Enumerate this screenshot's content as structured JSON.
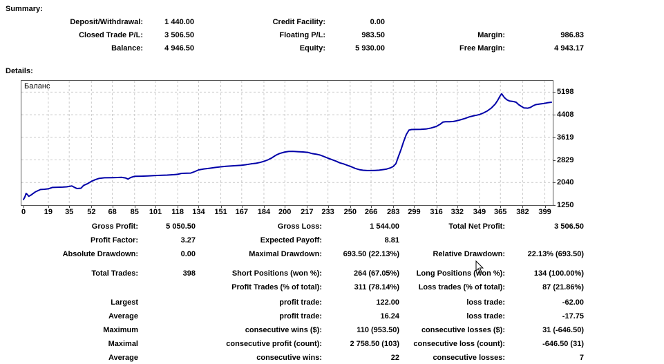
{
  "summary": {
    "heading": "Summary:",
    "rows": [
      {
        "c1l": "Deposit/Withdrawal:",
        "c1v": "1 440.00",
        "c2l": "Credit Facility:",
        "c2v": "0.00",
        "c3l": "",
        "c3v": ""
      },
      {
        "c1l": "Closed Trade P/L:",
        "c1v": "3 506.50",
        "c2l": "Floating P/L:",
        "c2v": "983.50",
        "c3l": "Margin:",
        "c3v": "986.83"
      },
      {
        "c1l": "Balance:",
        "c1v": "4 946.50",
        "c2l": "Equity:",
        "c2v": "5 930.00",
        "c3l": "Free Margin:",
        "c3v": "4 943.17"
      }
    ]
  },
  "details_heading": "Details:",
  "chart_data": {
    "type": "line",
    "title": "Баланс",
    "legend_position": "top-left-inside",
    "grid": "dashed",
    "xlim": [
      0,
      404
    ],
    "ylim": [
      1250,
      5593
    ],
    "x_ticks": [
      0,
      19,
      35,
      52,
      68,
      85,
      101,
      118,
      134,
      151,
      167,
      184,
      200,
      217,
      233,
      250,
      266,
      283,
      299,
      316,
      332,
      349,
      365,
      382,
      399
    ],
    "y_ticks": [
      5198,
      4408,
      3619,
      2829,
      2040,
      1250
    ],
    "series": [
      {
        "name": "Баланс",
        "color": "#0000a8",
        "points": [
          [
            0,
            1450
          ],
          [
            1,
            1530
          ],
          [
            2,
            1660
          ],
          [
            3,
            1620
          ],
          [
            4,
            1560
          ],
          [
            6,
            1610
          ],
          [
            9,
            1710
          ],
          [
            13,
            1795
          ],
          [
            16,
            1805
          ],
          [
            19,
            1820
          ],
          [
            22,
            1868
          ],
          [
            26,
            1875
          ],
          [
            30,
            1880
          ],
          [
            33,
            1890
          ],
          [
            35,
            1905
          ],
          [
            37,
            1920
          ],
          [
            39,
            1870
          ],
          [
            41,
            1830
          ],
          [
            44,
            1840
          ],
          [
            46,
            1940
          ],
          [
            49,
            2000
          ],
          [
            52,
            2080
          ],
          [
            55,
            2140
          ],
          [
            58,
            2185
          ],
          [
            62,
            2205
          ],
          [
            68,
            2210
          ],
          [
            72,
            2215
          ],
          [
            75,
            2220
          ],
          [
            78,
            2200
          ],
          [
            80,
            2160
          ],
          [
            82,
            2215
          ],
          [
            85,
            2255
          ],
          [
            90,
            2262
          ],
          [
            95,
            2270
          ],
          [
            101,
            2285
          ],
          [
            106,
            2293
          ],
          [
            110,
            2300
          ],
          [
            115,
            2313
          ],
          [
            118,
            2325
          ],
          [
            121,
            2360
          ],
          [
            125,
            2368
          ],
          [
            128,
            2370
          ],
          [
            131,
            2420
          ],
          [
            134,
            2480
          ],
          [
            138,
            2515
          ],
          [
            142,
            2535
          ],
          [
            147,
            2568
          ],
          [
            151,
            2590
          ],
          [
            155,
            2607
          ],
          [
            160,
            2622
          ],
          [
            164,
            2635
          ],
          [
            167,
            2645
          ],
          [
            170,
            2662
          ],
          [
            174,
            2690
          ],
          [
            178,
            2712
          ],
          [
            181,
            2740
          ],
          [
            184,
            2780
          ],
          [
            187,
            2830
          ],
          [
            190,
            2900
          ],
          [
            193,
            2990
          ],
          [
            196,
            3055
          ],
          [
            200,
            3105
          ],
          [
            203,
            3128
          ],
          [
            206,
            3130
          ],
          [
            210,
            3118
          ],
          [
            214,
            3108
          ],
          [
            218,
            3088
          ],
          [
            221,
            3050
          ],
          [
            224,
            3030
          ],
          [
            227,
            3000
          ],
          [
            230,
            2945
          ],
          [
            233,
            2890
          ],
          [
            236,
            2840
          ],
          [
            239,
            2790
          ],
          [
            242,
            2730
          ],
          [
            245,
            2690
          ],
          [
            248,
            2640
          ],
          [
            251,
            2590
          ],
          [
            254,
            2530
          ],
          [
            257,
            2490
          ],
          [
            260,
            2468
          ],
          [
            263,
            2458
          ],
          [
            266,
            2460
          ],
          [
            269,
            2464
          ],
          [
            272,
            2470
          ],
          [
            275,
            2490
          ],
          [
            278,
            2512
          ],
          [
            281,
            2555
          ],
          [
            283,
            2600
          ],
          [
            285,
            2700
          ],
          [
            287,
            2950
          ],
          [
            289,
            3200
          ],
          [
            291,
            3480
          ],
          [
            293,
            3720
          ],
          [
            295,
            3870
          ],
          [
            297,
            3892
          ],
          [
            300,
            3895
          ],
          [
            304,
            3898
          ],
          [
            308,
            3910
          ],
          [
            312,
            3945
          ],
          [
            316,
            4000
          ],
          [
            319,
            4080
          ],
          [
            321,
            4150
          ],
          [
            323,
            4162
          ],
          [
            326,
            4165
          ],
          [
            329,
            4172
          ],
          [
            332,
            4200
          ],
          [
            335,
            4240
          ],
          [
            338,
            4280
          ],
          [
            341,
            4330
          ],
          [
            344,
            4365
          ],
          [
            347,
            4395
          ],
          [
            349,
            4415
          ],
          [
            352,
            4470
          ],
          [
            355,
            4540
          ],
          [
            358,
            4640
          ],
          [
            361,
            4780
          ],
          [
            363,
            4920
          ],
          [
            365,
            5080
          ],
          [
            366,
            5140
          ],
          [
            368,
            5010
          ],
          [
            370,
            4930
          ],
          [
            372,
            4885
          ],
          [
            375,
            4870
          ],
          [
            377,
            4845
          ],
          [
            379,
            4760
          ],
          [
            381,
            4700
          ],
          [
            383,
            4648
          ],
          [
            386,
            4638
          ],
          [
            388,
            4665
          ],
          [
            390,
            4720
          ],
          [
            392,
            4760
          ],
          [
            395,
            4782
          ],
          [
            398,
            4800
          ],
          [
            401,
            4825
          ],
          [
            404,
            4845
          ]
        ]
      }
    ]
  },
  "stats": {
    "rows": [
      {
        "c1l": "Gross Profit:",
        "c1v": "5 050.50",
        "c2l": "Gross Loss:",
        "c2v": "1 544.00",
        "c3l": "Total Net Profit:",
        "c3v": "3 506.50"
      },
      {
        "c1l": "Profit Factor:",
        "c1v": "3.27",
        "c2l": "Expected Payoff:",
        "c2v": "8.81",
        "c3l": "",
        "c3v": ""
      },
      {
        "c1l": "Absolute Drawdown:",
        "c1v": "0.00",
        "c2l": "Maximal Drawdown:",
        "c2v": "693.50 (22.13%)",
        "c3l": "Relative Drawdown:",
        "c3v": "22.13% (693.50)"
      },
      {
        "c1l": "Total Trades:",
        "c1v": "398",
        "c2l": "Short Positions (won %):",
        "c2v": "264 (67.05%)",
        "c3l": "Long Positions (won %):",
        "c3v": "134 (100.00%)"
      },
      {
        "c1l": "",
        "c1v": "",
        "c2l": "Profit Trades (% of total):",
        "c2v": "311 (78.14%)",
        "c3l": "Loss trades (% of total):",
        "c3v": "87 (21.86%)"
      },
      {
        "c1l": "Largest",
        "c1v": "",
        "c2l": "profit trade:",
        "c2v": "122.00",
        "c3l": "loss trade:",
        "c3v": "-62.00"
      },
      {
        "c1l": "Average",
        "c1v": "",
        "c2l": "profit trade:",
        "c2v": "16.24",
        "c3l": "loss trade:",
        "c3v": "-17.75"
      },
      {
        "c1l": "Maximum",
        "c1v": "",
        "c2l": "consecutive wins ($):",
        "c2v": "110 (953.50)",
        "c3l": "consecutive losses ($):",
        "c3v": "31 (-646.50)"
      },
      {
        "c1l": "Maximal",
        "c1v": "",
        "c2l": "consecutive profit (count):",
        "c2v": "2 758.50 (103)",
        "c3l": "consecutive loss (count):",
        "c3v": "-646.50 (31)"
      },
      {
        "c1l": "Average",
        "c1v": "",
        "c2l": "consecutive wins:",
        "c2v": "22",
        "c3l": "consecutive losses:",
        "c3v": "7"
      }
    ]
  }
}
